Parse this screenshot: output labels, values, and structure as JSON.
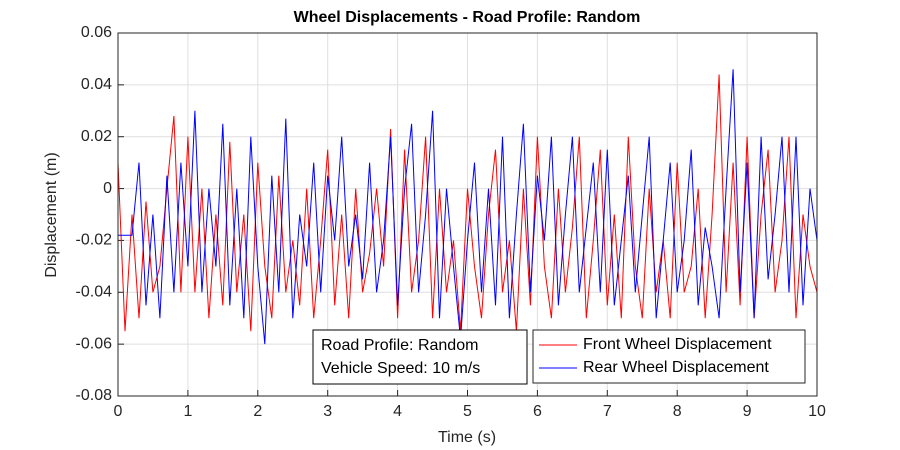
{
  "chart_data": {
    "type": "line",
    "title": "Wheel Displacements - Road Profile: Random",
    "xlabel": "Time (s)",
    "ylabel": "Displacement (m)",
    "annotation": [
      "Road Profile: Random",
      "Vehicle Speed: 10 m/s"
    ],
    "x": [
      0,
      0.1,
      0.2,
      0.3,
      0.4,
      0.5,
      0.6,
      0.7,
      0.8,
      0.9,
      1,
      1.1,
      1.2,
      1.3,
      1.4,
      1.5,
      1.6,
      1.7,
      1.8,
      1.9,
      2,
      2.1,
      2.2,
      2.3,
      2.4,
      2.5,
      2.6,
      2.7,
      2.8,
      2.9,
      3,
      3.1,
      3.2,
      3.3,
      3.4,
      3.5,
      3.6,
      3.7,
      3.8,
      3.9,
      4,
      4.1,
      4.2,
      4.3,
      4.4,
      4.5,
      4.6,
      4.7,
      4.8,
      4.9,
      5,
      5.1,
      5.2,
      5.3,
      5.4,
      5.5,
      5.6,
      5.7,
      5.8,
      5.9,
      6,
      6.1,
      6.2,
      6.3,
      6.4,
      6.5,
      6.6,
      6.7,
      6.8,
      6.9,
      7,
      7.1,
      7.2,
      7.3,
      7.4,
      7.5,
      7.6,
      7.7,
      7.8,
      7.9,
      8,
      8.1,
      8.2,
      8.3,
      8.4,
      8.5,
      8.6,
      8.7,
      8.8,
      8.9,
      9,
      9.1,
      9.2,
      9.3,
      9.4,
      9.5,
      9.6,
      9.7,
      9.8,
      9.9,
      10
    ],
    "series": [
      {
        "name": "Front Wheel Displacement",
        "color": "#ff0000",
        "values": [
          0.01,
          -0.055,
          -0.01,
          -0.05,
          -0.005,
          -0.04,
          -0.03,
          0.0,
          0.028,
          -0.04,
          0.02,
          -0.04,
          0.0,
          -0.05,
          -0.01,
          -0.045,
          0.018,
          -0.04,
          -0.01,
          -0.055,
          0.01,
          -0.03,
          -0.05,
          0.005,
          -0.04,
          -0.02,
          -0.045,
          0.0,
          -0.05,
          -0.02,
          0.015,
          -0.045,
          -0.01,
          -0.05,
          0.0,
          -0.04,
          -0.025,
          0.0,
          -0.03,
          0.023,
          -0.05,
          0.015,
          -0.04,
          -0.02,
          0.02,
          -0.05,
          0.0,
          -0.04,
          -0.02,
          -0.055,
          0.0,
          -0.03,
          -0.05,
          -0.01,
          0.015,
          -0.04,
          -0.02,
          -0.055,
          0.0,
          -0.045,
          0.02,
          -0.03,
          -0.05,
          0.0,
          -0.04,
          -0.015,
          0.02,
          -0.05,
          -0.02,
          0.015,
          -0.045,
          -0.01,
          -0.05,
          0.02,
          -0.03,
          -0.05,
          0.0,
          -0.04,
          -0.02,
          -0.05,
          0.01,
          -0.04,
          -0.03,
          0.0,
          -0.05,
          -0.01,
          0.044,
          -0.04,
          0.01,
          -0.045,
          0.02,
          -0.05,
          -0.01,
          0.015,
          -0.04,
          -0.02,
          0.02,
          -0.05,
          -0.01,
          -0.03,
          -0.04
        ]
      },
      {
        "name": "Rear Wheel Displacement",
        "color": "#0000ff",
        "values": [
          -0.018,
          -0.018,
          -0.018,
          0.01,
          -0.045,
          -0.01,
          -0.05,
          0.005,
          -0.04,
          0.01,
          -0.03,
          0.03,
          -0.04,
          0.0,
          -0.03,
          0.025,
          -0.045,
          0.0,
          -0.05,
          0.02,
          -0.03,
          -0.06,
          0.005,
          -0.04,
          0.027,
          -0.05,
          -0.01,
          -0.03,
          0.01,
          -0.04,
          0.005,
          -0.02,
          0.02,
          -0.03,
          -0.01,
          -0.035,
          0.01,
          -0.04,
          -0.02,
          0.02,
          -0.045,
          0.0,
          0.025,
          -0.04,
          -0.01,
          0.03,
          -0.05,
          0.0,
          -0.03,
          -0.058,
          -0.02,
          0.01,
          -0.04,
          0.0,
          -0.045,
          0.02,
          -0.05,
          -0.01,
          0.025,
          -0.04,
          0.005,
          -0.02,
          0.02,
          -0.045,
          -0.01,
          0.02,
          -0.04,
          -0.015,
          0.01,
          -0.04,
          0.015,
          -0.045,
          -0.02,
          0.005,
          -0.04,
          -0.01,
          0.02,
          -0.05,
          -0.02,
          0.01,
          -0.04,
          -0.02,
          0.015,
          -0.045,
          -0.015,
          -0.03,
          -0.05,
          0.0,
          0.046,
          -0.04,
          0.01,
          -0.05,
          0.02,
          -0.035,
          -0.01,
          0.02,
          -0.04,
          0.02,
          -0.045,
          0.0,
          -0.02
        ]
      }
    ],
    "xlim": [
      0,
      10
    ],
    "xticks": [
      0,
      1,
      2,
      3,
      4,
      5,
      6,
      7,
      8,
      9,
      10
    ],
    "ylim": [
      -0.08,
      0.06
    ],
    "yticks": [
      -0.08,
      -0.06,
      -0.04,
      -0.02,
      0,
      0.02,
      0.04,
      0.06
    ],
    "grid": true,
    "legend_loc": "lower right"
  }
}
